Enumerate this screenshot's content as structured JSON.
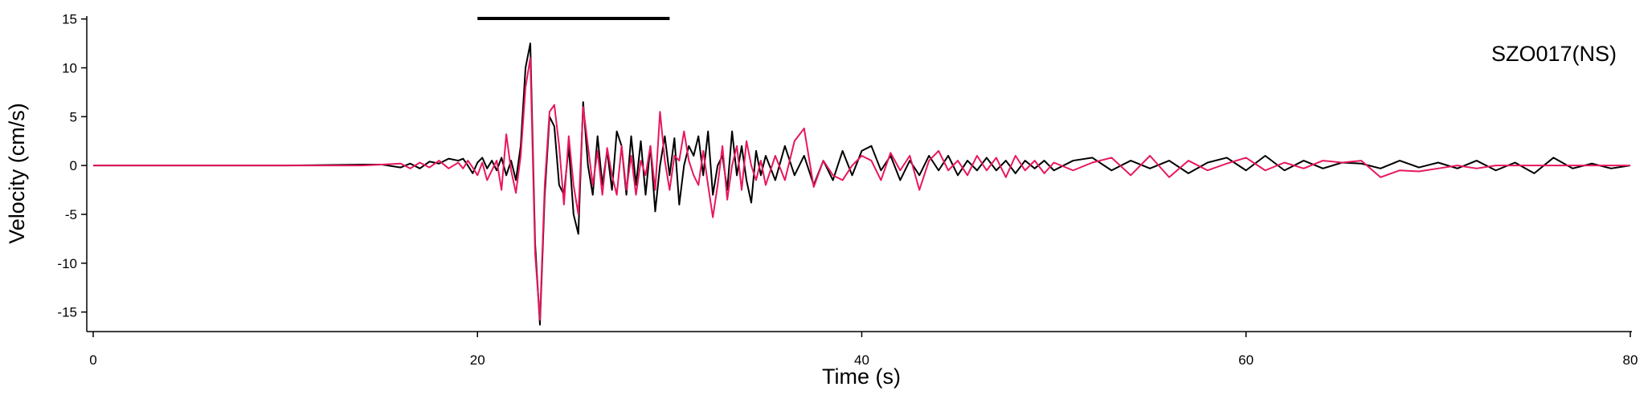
{
  "chart_data": {
    "type": "line",
    "annotation": "SZO017(NS)",
    "xlabel": "Time (s)",
    "ylabel": "Velocity (cm/s)",
    "marker_span": [
      20,
      30
    ],
    "x": [
      0,
      5,
      10,
      14,
      15,
      16,
      16.5,
      17,
      17.5,
      18,
      18.5,
      19,
      19.25,
      19.5,
      19.75,
      20,
      20.25,
      20.5,
      20.75,
      21,
      21.25,
      21.5,
      21.75,
      22,
      22.25,
      22.5,
      22.75,
      23,
      23.25,
      23.5,
      23.75,
      24,
      24.25,
      24.5,
      24.75,
      25,
      25.25,
      25.5,
      25.75,
      26,
      26.25,
      26.5,
      26.75,
      27,
      27.25,
      27.5,
      27.75,
      28,
      28.25,
      28.5,
      28.75,
      29,
      29.25,
      29.5,
      29.75,
      30,
      30.25,
      30.5,
      30.75,
      31,
      31.25,
      31.5,
      31.75,
      32,
      32.25,
      32.5,
      32.75,
      33,
      33.25,
      33.5,
      33.75,
      34,
      34.25,
      34.5,
      34.75,
      35,
      35.5,
      36,
      36.5,
      37,
      37.5,
      38,
      38.5,
      39,
      39.5,
      40,
      40.5,
      41,
      41.5,
      42,
      42.5,
      43,
      43.5,
      44,
      44.5,
      45,
      45.5,
      46,
      46.5,
      47,
      47.5,
      48,
      48.5,
      49,
      49.5,
      50,
      51,
      52,
      53,
      54,
      55,
      56,
      57,
      58,
      59,
      60,
      61,
      62,
      63,
      64,
      65,
      66,
      67,
      68,
      69,
      70,
      71,
      72,
      73,
      74,
      75,
      76,
      77,
      78,
      79,
      80
    ],
    "series": [
      {
        "color": "#000000",
        "values": [
          0,
          0,
          0,
          0.1,
          0.1,
          -0.2,
          0.2,
          -0.3,
          0.4,
          0.2,
          0.7,
          0.5,
          0.7,
          0,
          -0.8,
          0.3,
          0.8,
          -0.3,
          0.5,
          -0.5,
          0.8,
          -1,
          0.5,
          -1.5,
          2,
          10,
          12.5,
          -8,
          -16.3,
          -3,
          5,
          4,
          -2,
          -3,
          2,
          -5,
          -7,
          6.5,
          0,
          -3,
          3,
          -2,
          1.5,
          -2.5,
          3.5,
          2,
          -3,
          3,
          -2,
          2.5,
          -3,
          2,
          -4.7,
          0,
          3,
          -1,
          2.8,
          -4,
          0,
          2,
          1,
          3,
          -1,
          3.5,
          -3,
          0,
          1,
          -2.5,
          3.5,
          -1,
          2,
          -1.5,
          -3.8,
          1.5,
          -1,
          1,
          -1.5,
          2,
          -1,
          1,
          -2,
          0.5,
          -1.5,
          1.5,
          -1,
          1.5,
          2,
          -0.5,
          1,
          -1.5,
          0.5,
          -1,
          1,
          -0.5,
          1,
          -1,
          0.5,
          -0.5,
          0.8,
          -0.5,
          0.5,
          -0.8,
          0.5,
          -0.3,
          0.5,
          -0.5,
          0.5,
          0.8,
          -0.5,
          0.5,
          -0.3,
          0.5,
          -0.8,
          0.3,
          0.8,
          -0.5,
          1,
          -0.5,
          0.5,
          -0.3,
          0.3,
          0.2,
          -0.3,
          0.5,
          -0.2,
          0.3,
          -0.3,
          0.5,
          -0.5,
          0.3,
          -0.8,
          0.8,
          -0.3,
          0.2,
          -0.3,
          0
        ]
      },
      {
        "color": "#e8175d",
        "values": [
          0,
          0,
          0,
          0,
          0.1,
          0.2,
          -0.3,
          0.3,
          -0.2,
          0.5,
          -0.3,
          0.3,
          -0.3,
          0.5,
          -0.2,
          -1,
          0.3,
          -1.5,
          -0.5,
          0.5,
          -2.5,
          3.2,
          -0.5,
          -2.8,
          1,
          8,
          11,
          -9,
          -15.8,
          -2,
          5.5,
          6.2,
          2,
          -4,
          3,
          -2,
          -5,
          6,
          2,
          -2,
          1.5,
          -3,
          1.8,
          -1,
          -3,
          2,
          -2.5,
          1,
          -3,
          0.5,
          -1,
          2,
          -2.5,
          5.5,
          0.5,
          -2.5,
          1,
          0.5,
          3.5,
          0.5,
          -1,
          -2,
          1.5,
          -2,
          -5.3,
          -2,
          2,
          -3.5,
          0,
          2,
          -2.5,
          2.5,
          0,
          -1.5,
          0.5,
          -2,
          1,
          -1.5,
          2.5,
          3.8,
          -2.2,
          0.5,
          -1,
          -1.5,
          0,
          1,
          0.5,
          -1.5,
          1.3,
          -0.5,
          1,
          -2.5,
          0.5,
          1.5,
          -0.5,
          0.5,
          -1,
          1,
          -0.5,
          0.8,
          -1.2,
          1,
          -0.5,
          0.5,
          -0.8,
          0.3,
          -0.5,
          0.3,
          0.8,
          -1,
          1,
          -1.2,
          0.5,
          -0.5,
          0.2,
          0.8,
          -0.5,
          0.3,
          -0.3,
          0.5,
          0.3,
          0.5,
          -1.2,
          -0.5,
          -0.6,
          -0.3,
          0,
          -0.3,
          0,
          0,
          0,
          0,
          0,
          0,
          0,
          0
        ]
      }
    ],
    "xlim": [
      0,
      80
    ],
    "xticks": [
      0,
      20,
      40,
      60,
      80
    ],
    "ylim": [
      -17,
      15.3
    ],
    "yticks": [
      -15,
      -10,
      -5,
      0,
      5,
      10,
      15
    ]
  }
}
